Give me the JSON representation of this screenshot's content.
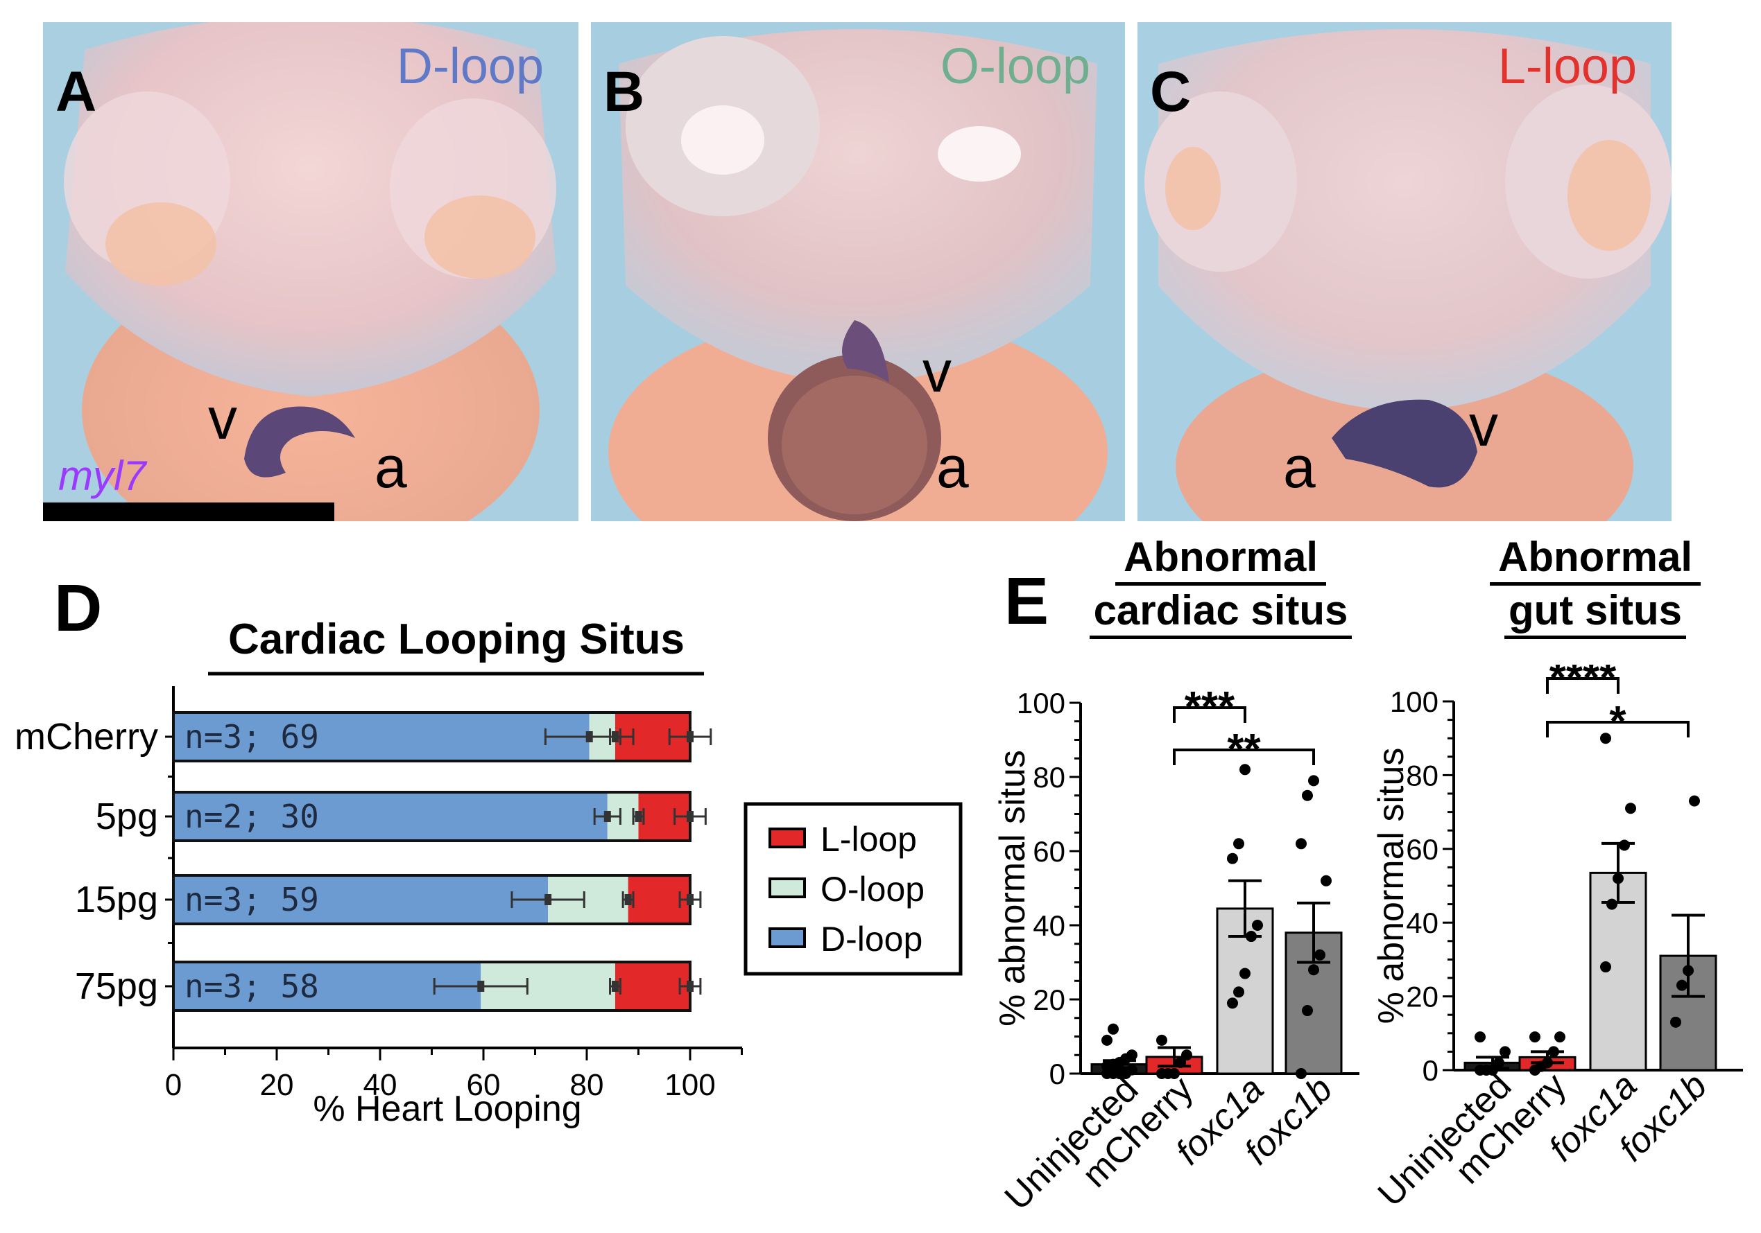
{
  "panels": {
    "A": {
      "label": "A",
      "title": "D-loop",
      "title_color": "#5f79c6",
      "ventricle": "v",
      "atrium": "a",
      "gene": "myl7"
    },
    "B": {
      "label": "B",
      "title": "O-loop",
      "title_color": "#6fae8f",
      "ventricle": "v",
      "atrium": "a"
    },
    "C": {
      "label": "C",
      "title": "L-loop",
      "title_color": "#e2322d",
      "ventricle": "v",
      "atrium": "a"
    }
  },
  "panel_D_label": "D",
  "panel_E_label": "E",
  "chart_data": [
    {
      "type": "bar",
      "orientation": "horizontal",
      "stacked": true,
      "title": "Cardiac Looping Situs",
      "xlabel": "% Heart Looping",
      "ylabel": "",
      "xlim": [
        0,
        100
      ],
      "xticks": [
        0,
        20,
        40,
        60,
        80,
        100
      ],
      "categories": [
        "mCherry",
        "5pg",
        "15pg",
        "75pg"
      ],
      "bar_labels": [
        "n=3; 69",
        "n=2; 30",
        "n=3; 59",
        "n=3; 58"
      ],
      "series": [
        {
          "name": "D-loop",
          "color": "#6c9bd2",
          "values": [
            80.5,
            84,
            72.5,
            59.5
          ],
          "errors": [
            8.5,
            2.5,
            7,
            9
          ]
        },
        {
          "name": "O-loop",
          "color": "#cfe9da",
          "values": [
            5,
            6,
            15.5,
            26
          ],
          "errors": [
            1,
            1,
            1,
            1
          ]
        },
        {
          "name": "L-loop",
          "color": "#e3282a",
          "values": [
            14.5,
            10,
            12,
            14.5
          ],
          "errors": [
            4,
            3,
            2,
            2
          ]
        }
      ],
      "legend": [
        "L-loop",
        "O-loop",
        "D-loop"
      ],
      "legend_position": "right"
    },
    {
      "type": "bar",
      "title": "Abnormal cardiac situs",
      "title_lines": [
        "Abnormal",
        "cardiac situs"
      ],
      "xlabel": "",
      "ylabel": "% abnormal situs",
      "ylim": [
        0,
        100
      ],
      "yticks": [
        0,
        20,
        40,
        60,
        80,
        100
      ],
      "categories": [
        "Uninjected",
        "mCherry",
        "foxc1a",
        "foxc1b"
      ],
      "italic_categories": [
        false,
        false,
        true,
        true
      ],
      "values": [
        2.5,
        4.5,
        44.5,
        38
      ],
      "errors": [
        1,
        2.5,
        7.5,
        8
      ],
      "bar_colors": [
        "#1a1a1a",
        "#e3282a",
        "#d3d3d3",
        "#7f7f7f"
      ],
      "points": [
        [
          0,
          0,
          0,
          0,
          1,
          2,
          2.5,
          3,
          4,
          5,
          9,
          12
        ],
        [
          0,
          0,
          0,
          3,
          5,
          9
        ],
        [
          19,
          22,
          27,
          37,
          40,
          58,
          62,
          82
        ],
        [
          0,
          17,
          28,
          32,
          52,
          62,
          75,
          79
        ]
      ],
      "significance": [
        {
          "from": "mCherry",
          "to": "foxc1a",
          "label": "***"
        },
        {
          "from": "mCherry",
          "to": "foxc1b",
          "label": "**"
        }
      ]
    },
    {
      "type": "bar",
      "title": "Abnormal gut situs",
      "title_lines": [
        "Abnormal",
        "gut situs"
      ],
      "xlabel": "",
      "ylabel": "% abnormal situs",
      "ylim": [
        0,
        100
      ],
      "yticks": [
        0,
        20,
        40,
        60,
        80,
        100
      ],
      "categories": [
        "Uninjected",
        "mCherry",
        "foxc1a",
        "foxc1b"
      ],
      "italic_categories": [
        false,
        false,
        true,
        true
      ],
      "values": [
        2,
        3.5,
        53.5,
        31
      ],
      "errors": [
        1.5,
        1.5,
        8,
        11
      ],
      "bar_colors": [
        "#1a1a1a",
        "#e3282a",
        "#d3d3d3",
        "#7f7f7f"
      ],
      "points": [
        [
          0,
          0,
          0,
          2,
          5,
          9
        ],
        [
          0,
          1,
          2,
          5,
          9,
          9
        ],
        [
          28,
          45,
          52,
          61,
          71,
          90
        ],
        [
          13,
          23,
          27,
          73
        ]
      ],
      "significance": [
        {
          "from": "mCherry",
          "to": "foxc1a",
          "label": "****"
        },
        {
          "from": "mCherry",
          "to": "foxc1b",
          "label": "*"
        }
      ]
    }
  ]
}
